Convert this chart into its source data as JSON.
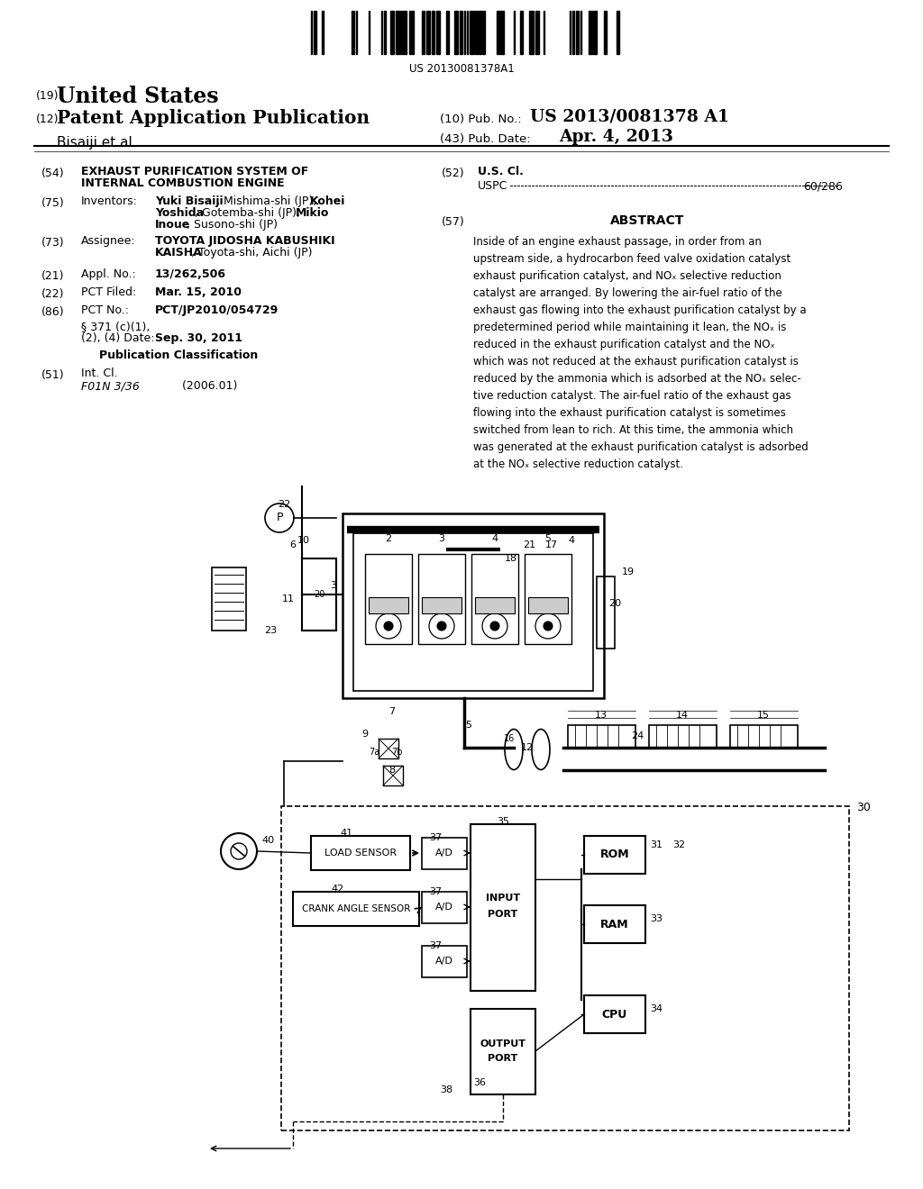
{
  "bg": "#ffffff",
  "barcode_text": "US 20130081378A1",
  "patent_number": "US 2013/0081378 A1",
  "pub_date": "Apr. 4, 2013",
  "abstract_lines": [
    "Inside of an engine exhaust passage, in order from an",
    "upstream side, a hydrocarbon feed valve oxidation catalyst",
    "exhaust purification catalyst, and NO",
    "x selective reduction",
    "catalyst are arranged. By lowering the air-fuel ratio of the",
    "exhaust gas flowing into the exhaust purification catalyst by a",
    "predetermined period while maintaining it lean, the NO",
    "x is",
    "reduced in the exhaust purification catalyst and the NO",
    "X",
    "which was not reduced at the exhaust purification catalyst is",
    "reduced by the ammonia which is adsorbed at the NO",
    "x selec-",
    "tive reduction catalyst. The air-fuel ratio of the exhaust gas",
    "flowing into the exhaust purification catalyst is sometimes",
    "switched from lean to rich. At this time, the ammonia which",
    "was generated at the exhaust purification catalyst is adsorbed",
    "at the NO",
    "x selective reduction catalyst."
  ]
}
